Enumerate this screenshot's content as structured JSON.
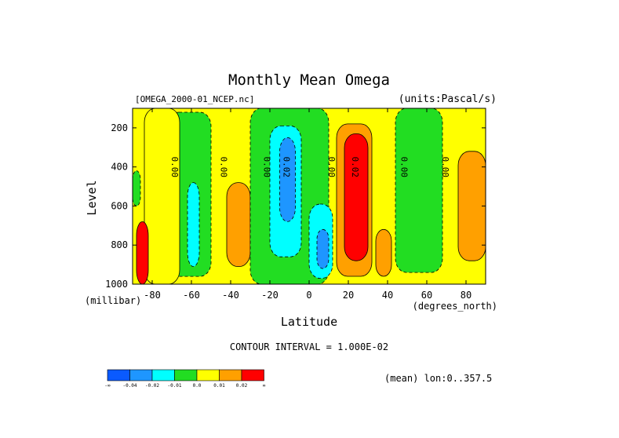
{
  "chart_data": {
    "type": "heatmap",
    "title": "Monthly Mean Omega",
    "subtitle_left": "[OMEGA_2000-01_NCEP.nc]",
    "subtitle_right": "(units:Pascal/s)",
    "xlabel": "Latitude",
    "xunit": "(degrees_north)",
    "ylabel": "Level",
    "yunit": "(millibar)",
    "xlim": [
      -90,
      90
    ],
    "ylim": [
      1000,
      100
    ],
    "x_ticks": [
      "-80",
      "-60",
      "-40",
      "-20",
      "0",
      "20",
      "40",
      "60",
      "80"
    ],
    "y_ticks": [
      "200",
      "400",
      "600",
      "800",
      "1000"
    ],
    "contour_interval_label": "CONTOUR INTERVAL = 1.000E-02",
    "footer_right": "(mean) lon:0..357.5",
    "contour_labels": [
      "0.00",
      "0.00",
      "0.00",
      "0.02",
      "0.00",
      "0.02",
      "0.00",
      "0.00"
    ],
    "colorbar": {
      "colors": [
        "#0a5aff",
        "#1e96ff",
        "#00ffff",
        "#22dd22",
        "#ffff00",
        "#ffa000",
        "#ff0000"
      ],
      "labels": [
        "-∞",
        "-0.04",
        "-0.02",
        "-0.01",
        "0.0",
        "0.01",
        "0.02",
        "∞"
      ]
    },
    "regions": [
      {
        "level": "-0.01 to 0.0",
        "lat_range": [
          -72,
          -50
        ],
        "lev_range": [
          120,
          960
        ]
      },
      {
        "level": "-0.02 to -0.01",
        "lat_range": [
          -62,
          -56
        ],
        "lev_range": [
          480,
          910
        ]
      },
      {
        "level": "0.0 to 0.01",
        "lat_range": [
          -84,
          -66
        ],
        "lev_range": [
          100,
          1000
        ]
      },
      {
        "level": "0.01 to 0.02",
        "lat_range": [
          -42,
          -30
        ],
        "lev_range": [
          480,
          910
        ]
      },
      {
        "level": "-0.01 to 0.0",
        "lat_range": [
          -30,
          10
        ],
        "lev_range": [
          100,
          1000
        ]
      },
      {
        "level": "-0.02 to -0.01",
        "lat_range": [
          -20,
          -4
        ],
        "lev_range": [
          190,
          860
        ]
      },
      {
        "level": "-0.04 to -0.02",
        "lat_range": [
          -15,
          -7
        ],
        "lev_range": [
          250,
          680
        ]
      },
      {
        "level": "-0.02 to -0.01",
        "lat_range": [
          0,
          12
        ],
        "lev_range": [
          590,
          970
        ]
      },
      {
        "level": "-0.04 to -0.02",
        "lat_range": [
          4,
          10
        ],
        "lev_range": [
          720,
          920
        ]
      },
      {
        "level": "0.01 to 0.02",
        "lat_range": [
          14,
          32
        ],
        "lev_range": [
          180,
          960
        ]
      },
      {
        "level": "0.02 to 0.03",
        "lat_range": [
          18,
          30
        ],
        "lev_range": [
          230,
          880
        ]
      },
      {
        "level": "0.01 to 0.02",
        "lat_range": [
          34,
          42
        ],
        "lev_range": [
          720,
          960
        ]
      },
      {
        "level": "-0.01 to 0.0",
        "lat_range": [
          44,
          68
        ],
        "lev_range": [
          100,
          940
        ]
      },
      {
        "level": "0.01 to 0.02",
        "lat_range": [
          76,
          90
        ],
        "lev_range": [
          320,
          880
        ]
      },
      {
        "level": "-0.01 to 0.0",
        "lat_range": [
          -90,
          -86
        ],
        "lev_range": [
          420,
          600
        ]
      },
      {
        "level": "0.02 to 0.03",
        "lat_range": [
          -88,
          -82
        ],
        "lev_range": [
          680,
          1000
        ]
      }
    ]
  }
}
